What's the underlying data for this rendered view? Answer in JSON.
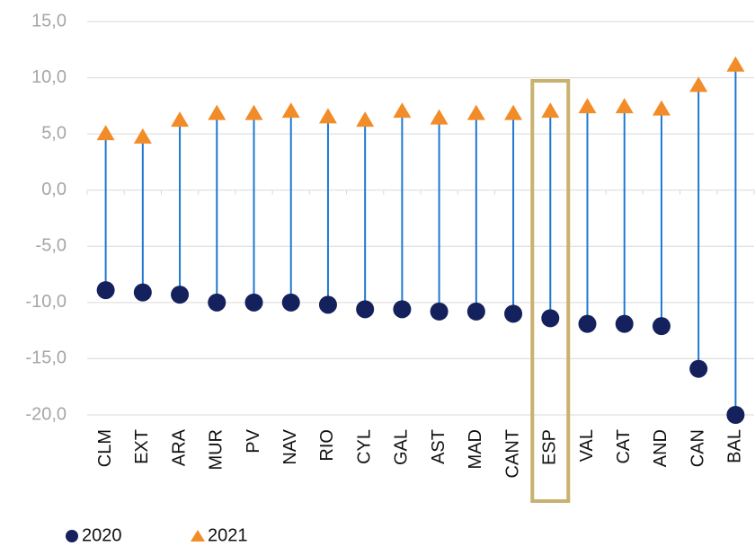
{
  "chart_data": {
    "type": "dot",
    "categories": [
      "CLM",
      "EXT",
      "ARA",
      "MUR",
      "PV",
      "NAV",
      "RIO",
      "CYL",
      "GAL",
      "AST",
      "MAD",
      "CANT",
      "ESP",
      "VAL",
      "CAT",
      "AND",
      "CAN",
      "BAL"
    ],
    "series": [
      {
        "name": "2020",
        "color": "#14215c",
        "marker": "circle",
        "values": [
          -8.9,
          -9.1,
          -9.3,
          -10.0,
          -10.0,
          -10.0,
          -10.2,
          -10.6,
          -10.6,
          -10.8,
          -10.8,
          -11.0,
          -11.4,
          -11.9,
          -11.9,
          -12.1,
          -15.9,
          -20.0
        ]
      },
      {
        "name": "2021",
        "color": "#f28c28",
        "marker": "triangle",
        "values": [
          5.0,
          4.7,
          6.2,
          6.8,
          6.8,
          7.0,
          6.5,
          6.2,
          7.0,
          6.4,
          6.8,
          6.8,
          7.0,
          7.4,
          7.4,
          7.2,
          9.3,
          11.1
        ]
      }
    ],
    "connector_color": "#1f78d1",
    "highlight": "ESP",
    "highlight_color": "#c9b16f",
    "ylim": [
      -20,
      15
    ],
    "yticks": [
      {
        "value": -20,
        "label": "-20,0"
      },
      {
        "value": -15,
        "label": "-15,0"
      },
      {
        "value": -10,
        "label": "-10,0"
      },
      {
        "value": -5,
        "label": "-5,0"
      },
      {
        "value": 0,
        "label": "0,0"
      },
      {
        "value": 5,
        "label": "5,0"
      },
      {
        "value": 10,
        "label": "10,0"
      },
      {
        "value": 15,
        "label": "15,0"
      }
    ],
    "grid": true,
    "legend": "bottom-left"
  }
}
